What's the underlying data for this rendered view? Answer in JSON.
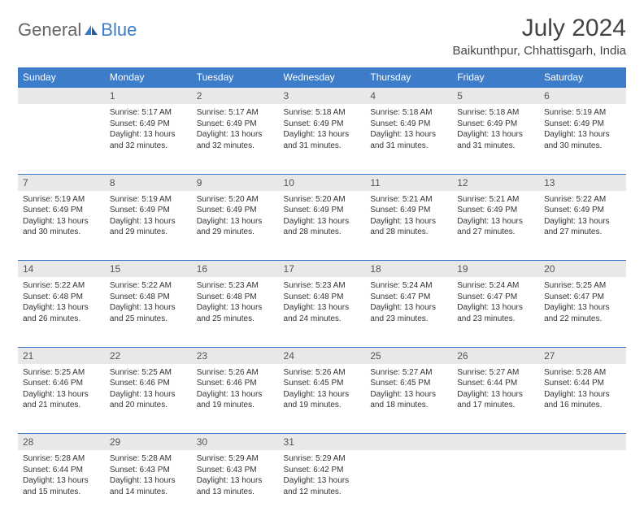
{
  "logo": {
    "text1": "General",
    "text2": "Blue"
  },
  "title": "July 2024",
  "location": "Baikunthpur, Chhattisgarh, India",
  "colors": {
    "header_bg": "#3d7cc9",
    "daynum_bg": "#e8e8e8",
    "text": "#333333"
  },
  "weekdays": [
    "Sunday",
    "Monday",
    "Tuesday",
    "Wednesday",
    "Thursday",
    "Friday",
    "Saturday"
  ],
  "weeks": [
    {
      "nums": [
        "",
        "1",
        "2",
        "3",
        "4",
        "5",
        "6"
      ],
      "cells": [
        null,
        {
          "sr": "Sunrise: 5:17 AM",
          "ss": "Sunset: 6:49 PM",
          "dl1": "Daylight: 13 hours",
          "dl2": "and 32 minutes."
        },
        {
          "sr": "Sunrise: 5:17 AM",
          "ss": "Sunset: 6:49 PM",
          "dl1": "Daylight: 13 hours",
          "dl2": "and 32 minutes."
        },
        {
          "sr": "Sunrise: 5:18 AM",
          "ss": "Sunset: 6:49 PM",
          "dl1": "Daylight: 13 hours",
          "dl2": "and 31 minutes."
        },
        {
          "sr": "Sunrise: 5:18 AM",
          "ss": "Sunset: 6:49 PM",
          "dl1": "Daylight: 13 hours",
          "dl2": "and 31 minutes."
        },
        {
          "sr": "Sunrise: 5:18 AM",
          "ss": "Sunset: 6:49 PM",
          "dl1": "Daylight: 13 hours",
          "dl2": "and 31 minutes."
        },
        {
          "sr": "Sunrise: 5:19 AM",
          "ss": "Sunset: 6:49 PM",
          "dl1": "Daylight: 13 hours",
          "dl2": "and 30 minutes."
        }
      ]
    },
    {
      "nums": [
        "7",
        "8",
        "9",
        "10",
        "11",
        "12",
        "13"
      ],
      "cells": [
        {
          "sr": "Sunrise: 5:19 AM",
          "ss": "Sunset: 6:49 PM",
          "dl1": "Daylight: 13 hours",
          "dl2": "and 30 minutes."
        },
        {
          "sr": "Sunrise: 5:19 AM",
          "ss": "Sunset: 6:49 PM",
          "dl1": "Daylight: 13 hours",
          "dl2": "and 29 minutes."
        },
        {
          "sr": "Sunrise: 5:20 AM",
          "ss": "Sunset: 6:49 PM",
          "dl1": "Daylight: 13 hours",
          "dl2": "and 29 minutes."
        },
        {
          "sr": "Sunrise: 5:20 AM",
          "ss": "Sunset: 6:49 PM",
          "dl1": "Daylight: 13 hours",
          "dl2": "and 28 minutes."
        },
        {
          "sr": "Sunrise: 5:21 AM",
          "ss": "Sunset: 6:49 PM",
          "dl1": "Daylight: 13 hours",
          "dl2": "and 28 minutes."
        },
        {
          "sr": "Sunrise: 5:21 AM",
          "ss": "Sunset: 6:49 PM",
          "dl1": "Daylight: 13 hours",
          "dl2": "and 27 minutes."
        },
        {
          "sr": "Sunrise: 5:22 AM",
          "ss": "Sunset: 6:49 PM",
          "dl1": "Daylight: 13 hours",
          "dl2": "and 27 minutes."
        }
      ]
    },
    {
      "nums": [
        "14",
        "15",
        "16",
        "17",
        "18",
        "19",
        "20"
      ],
      "cells": [
        {
          "sr": "Sunrise: 5:22 AM",
          "ss": "Sunset: 6:48 PM",
          "dl1": "Daylight: 13 hours",
          "dl2": "and 26 minutes."
        },
        {
          "sr": "Sunrise: 5:22 AM",
          "ss": "Sunset: 6:48 PM",
          "dl1": "Daylight: 13 hours",
          "dl2": "and 25 minutes."
        },
        {
          "sr": "Sunrise: 5:23 AM",
          "ss": "Sunset: 6:48 PM",
          "dl1": "Daylight: 13 hours",
          "dl2": "and 25 minutes."
        },
        {
          "sr": "Sunrise: 5:23 AM",
          "ss": "Sunset: 6:48 PM",
          "dl1": "Daylight: 13 hours",
          "dl2": "and 24 minutes."
        },
        {
          "sr": "Sunrise: 5:24 AM",
          "ss": "Sunset: 6:47 PM",
          "dl1": "Daylight: 13 hours",
          "dl2": "and 23 minutes."
        },
        {
          "sr": "Sunrise: 5:24 AM",
          "ss": "Sunset: 6:47 PM",
          "dl1": "Daylight: 13 hours",
          "dl2": "and 23 minutes."
        },
        {
          "sr": "Sunrise: 5:25 AM",
          "ss": "Sunset: 6:47 PM",
          "dl1": "Daylight: 13 hours",
          "dl2": "and 22 minutes."
        }
      ]
    },
    {
      "nums": [
        "21",
        "22",
        "23",
        "24",
        "25",
        "26",
        "27"
      ],
      "cells": [
        {
          "sr": "Sunrise: 5:25 AM",
          "ss": "Sunset: 6:46 PM",
          "dl1": "Daylight: 13 hours",
          "dl2": "and 21 minutes."
        },
        {
          "sr": "Sunrise: 5:25 AM",
          "ss": "Sunset: 6:46 PM",
          "dl1": "Daylight: 13 hours",
          "dl2": "and 20 minutes."
        },
        {
          "sr": "Sunrise: 5:26 AM",
          "ss": "Sunset: 6:46 PM",
          "dl1": "Daylight: 13 hours",
          "dl2": "and 19 minutes."
        },
        {
          "sr": "Sunrise: 5:26 AM",
          "ss": "Sunset: 6:45 PM",
          "dl1": "Daylight: 13 hours",
          "dl2": "and 19 minutes."
        },
        {
          "sr": "Sunrise: 5:27 AM",
          "ss": "Sunset: 6:45 PM",
          "dl1": "Daylight: 13 hours",
          "dl2": "and 18 minutes."
        },
        {
          "sr": "Sunrise: 5:27 AM",
          "ss": "Sunset: 6:44 PM",
          "dl1": "Daylight: 13 hours",
          "dl2": "and 17 minutes."
        },
        {
          "sr": "Sunrise: 5:28 AM",
          "ss": "Sunset: 6:44 PM",
          "dl1": "Daylight: 13 hours",
          "dl2": "and 16 minutes."
        }
      ]
    },
    {
      "nums": [
        "28",
        "29",
        "30",
        "31",
        "",
        "",
        ""
      ],
      "cells": [
        {
          "sr": "Sunrise: 5:28 AM",
          "ss": "Sunset: 6:44 PM",
          "dl1": "Daylight: 13 hours",
          "dl2": "and 15 minutes."
        },
        {
          "sr": "Sunrise: 5:28 AM",
          "ss": "Sunset: 6:43 PM",
          "dl1": "Daylight: 13 hours",
          "dl2": "and 14 minutes."
        },
        {
          "sr": "Sunrise: 5:29 AM",
          "ss": "Sunset: 6:43 PM",
          "dl1": "Daylight: 13 hours",
          "dl2": "and 13 minutes."
        },
        {
          "sr": "Sunrise: 5:29 AM",
          "ss": "Sunset: 6:42 PM",
          "dl1": "Daylight: 13 hours",
          "dl2": "and 12 minutes."
        },
        null,
        null,
        null
      ]
    }
  ]
}
